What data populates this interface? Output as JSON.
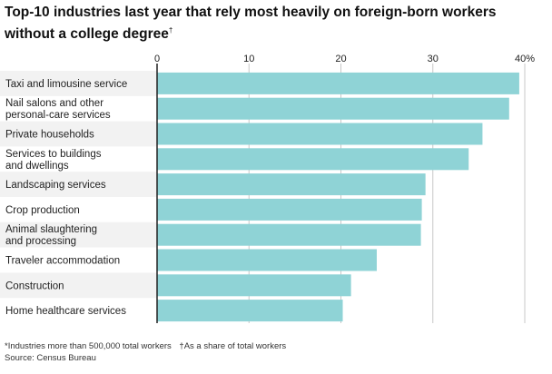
{
  "title": "Top-10 industries last year that rely most heavily on foreign-born workers without a college degree",
  "title_mark": "†",
  "footnotes": {
    "industries": "*Industries more than 500,000 total workers",
    "share": "†As a share of total workers",
    "source": "Source: Census Bureau"
  },
  "colors": {
    "bar": "#8fd3d6",
    "row_shade": "#f2f2f2",
    "grid": "#c8c8c8",
    "axis": "#222222"
  },
  "chart_data": {
    "type": "bar",
    "orientation": "horizontal",
    "categories": [
      "Taxi and limousine service",
      "Nail salons and other\npersonal-care services",
      "Private households",
      "Services to buildings\nand dwellings",
      "Landscaping services",
      "Crop production",
      "Animal slaughtering\nand processing",
      "Traveler accommodation",
      "Construction",
      "Home healthcare services"
    ],
    "values": [
      39.4,
      38.3,
      35.4,
      33.9,
      29.2,
      28.8,
      28.7,
      23.9,
      21.1,
      20.2
    ],
    "xlim": [
      0,
      40
    ],
    "ticks": [
      0,
      10,
      20,
      30,
      40
    ],
    "tick_labels": [
      "0",
      "10",
      "20",
      "30",
      "40%"
    ],
    "grid": true,
    "row_shading": "alternating"
  }
}
